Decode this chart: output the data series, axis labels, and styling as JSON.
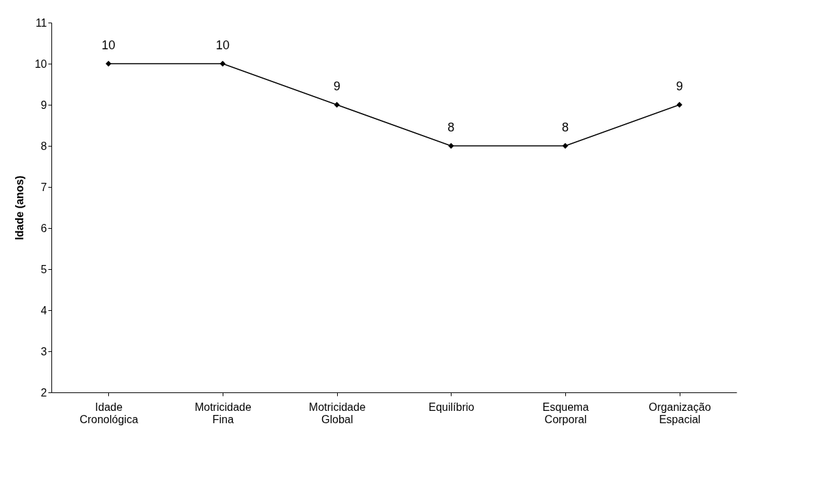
{
  "chart_data": {
    "type": "line",
    "ylabel": "Idade (anos)",
    "categories": [
      "Idade Cronológica",
      "Motricidade Fina",
      "Motricidade Global",
      "Equilíbrio",
      "Esquema Corporal",
      "Organização Espacial"
    ],
    "series": [
      {
        "color": "#000000",
        "values": [
          10,
          10,
          9,
          8,
          8,
          9
        ]
      }
    ],
    "ylim": [
      2,
      11
    ],
    "yticks": [
      2,
      3,
      4,
      5,
      6,
      7,
      8,
      9,
      10,
      11
    ],
    "grid": false,
    "legend": false,
    "marker": "diamond",
    "line_style": "solid",
    "data_labels": true
  }
}
